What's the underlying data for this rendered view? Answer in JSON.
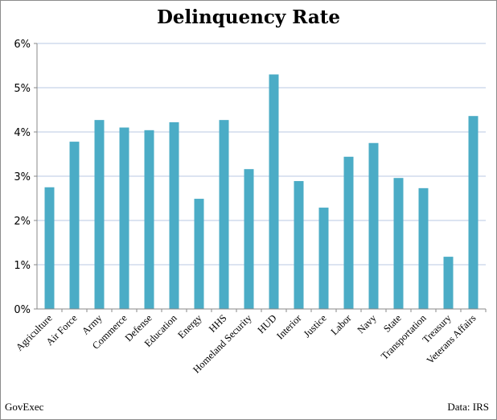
{
  "chart_data": {
    "type": "bar",
    "title": "Delinquency Rate",
    "xlabel": "",
    "ylabel": "",
    "ylim": [
      0,
      6
    ],
    "yticks": [
      "0%",
      "1%",
      "2%",
      "3%",
      "4%",
      "5%",
      "6%"
    ],
    "grid": true,
    "bar_color": "#4bacc6",
    "grid_color": "#b9c9e3",
    "categories": [
      "Agriculture",
      "Air Force",
      "Army",
      "Commerce",
      "Defense",
      "Education",
      "Energy",
      "HHS",
      "Homeland Security",
      "HUD",
      "Interior",
      "Justice",
      "Labor",
      "Navy",
      "State",
      "Transportation",
      "Treasury",
      "Veterans Affairs"
    ],
    "values": [
      2.75,
      3.78,
      4.27,
      4.1,
      4.04,
      4.22,
      2.49,
      4.27,
      3.16,
      5.3,
      2.89,
      2.29,
      3.44,
      3.75,
      2.96,
      2.73,
      1.18,
      4.36
    ]
  },
  "footer": {
    "left": "GovExec",
    "right": "Data: IRS"
  }
}
